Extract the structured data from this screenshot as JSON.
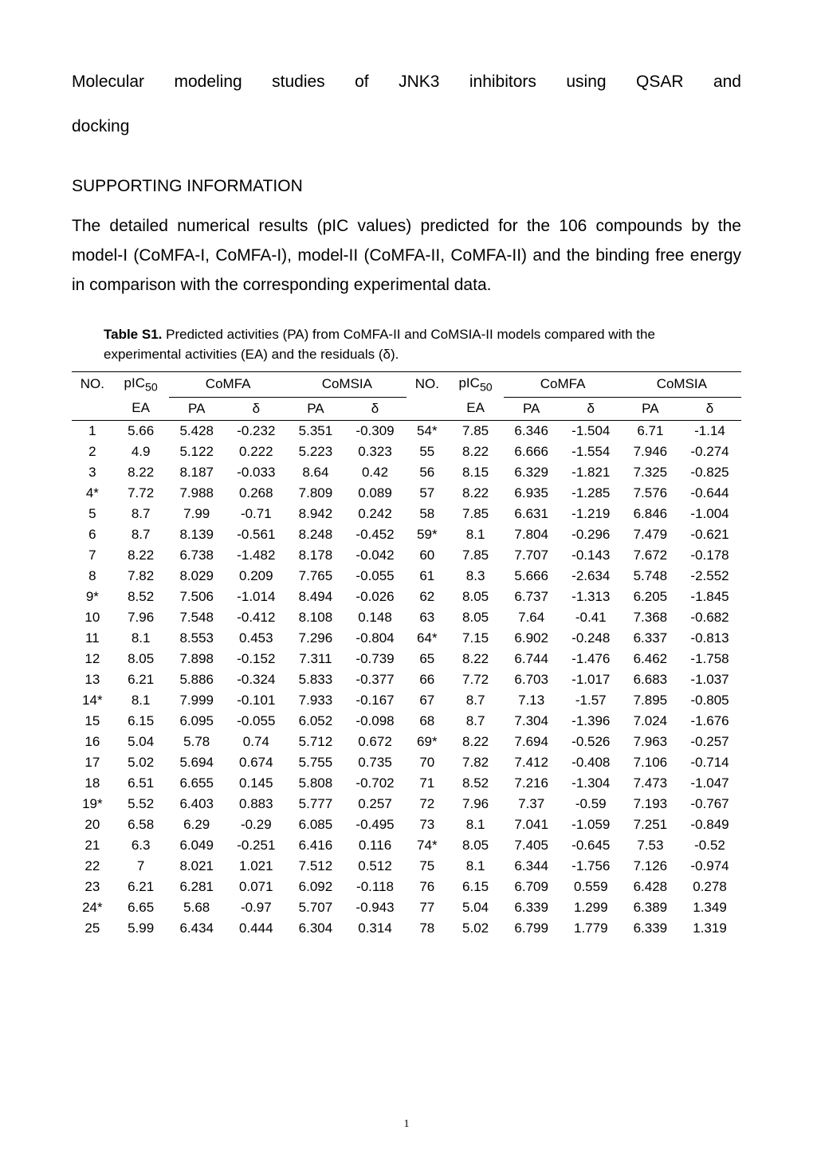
{
  "title_line1": "Molecular modeling studies of JNK3 inhibitors using QSAR and",
  "title_line2": "docking",
  "section_heading": "SUPPORTING INFORMATION",
  "body_paragraph": "The detailed numerical results (pIC values) predicted for the 106 compounds by the model-I (CoMFA-I, CoMFA-I), model-II (CoMFA-II, CoMFA-II) and the binding free energy in comparison with the corresponding experimental data.",
  "table_caption_label": "Table S1.",
  "table_caption_text": " Predicted activities (PA) from CoMFA-II and CoMSIA-II models compared with the experimental activities (EA) and the residuals (δ).",
  "page_number": "1",
  "table": {
    "top_header": {
      "no": "NO.",
      "pic50": "pIC",
      "pic50_sub": "50",
      "comfa": "CoMFA",
      "comsia": "CoMSIA"
    },
    "sub_header": {
      "ea": "EA",
      "pa": "PA",
      "delta": "δ"
    },
    "rows": [
      {
        "no": "1",
        "ea1": "5.66",
        "pa1": "5.428",
        "d1": "-0.232",
        "pa2": "5.351",
        "d2": "-0.309",
        "no2": "54*",
        "ea2": "7.85",
        "pa3": "6.346",
        "d3": "-1.504",
        "pa4": "6.71",
        "d4": "-1.14"
      },
      {
        "no": "2",
        "ea1": "4.9",
        "pa1": "5.122",
        "d1": "0.222",
        "pa2": "5.223",
        "d2": "0.323",
        "no2": "55",
        "ea2": "8.22",
        "pa3": "6.666",
        "d3": "-1.554",
        "pa4": "7.946",
        "d4": "-0.274"
      },
      {
        "no": "3",
        "ea1": "8.22",
        "pa1": "8.187",
        "d1": "-0.033",
        "pa2": "8.64",
        "d2": "0.42",
        "no2": "56",
        "ea2": "8.15",
        "pa3": "6.329",
        "d3": "-1.821",
        "pa4": "7.325",
        "d4": "-0.825"
      },
      {
        "no": "4*",
        "ea1": "7.72",
        "pa1": "7.988",
        "d1": "0.268",
        "pa2": "7.809",
        "d2": "0.089",
        "no2": "57",
        "ea2": "8.22",
        "pa3": "6.935",
        "d3": "-1.285",
        "pa4": "7.576",
        "d4": "-0.644"
      },
      {
        "no": "5",
        "ea1": "8.7",
        "pa1": "7.99",
        "d1": "-0.71",
        "pa2": "8.942",
        "d2": "0.242",
        "no2": "58",
        "ea2": "7.85",
        "pa3": "6.631",
        "d3": "-1.219",
        "pa4": "6.846",
        "d4": "-1.004"
      },
      {
        "no": "6",
        "ea1": "8.7",
        "pa1": "8.139",
        "d1": "-0.561",
        "pa2": "8.248",
        "d2": "-0.452",
        "no2": "59*",
        "ea2": "8.1",
        "pa3": "7.804",
        "d3": "-0.296",
        "pa4": "7.479",
        "d4": "-0.621"
      },
      {
        "no": "7",
        "ea1": "8.22",
        "pa1": "6.738",
        "d1": "-1.482",
        "pa2": "8.178",
        "d2": "-0.042",
        "no2": "60",
        "ea2": "7.85",
        "pa3": "7.707",
        "d3": "-0.143",
        "pa4": "7.672",
        "d4": "-0.178"
      },
      {
        "no": "8",
        "ea1": "7.82",
        "pa1": "8.029",
        "d1": "0.209",
        "pa2": "7.765",
        "d2": "-0.055",
        "no2": "61",
        "ea2": "8.3",
        "pa3": "5.666",
        "d3": "-2.634",
        "pa4": "5.748",
        "d4": "-2.552"
      },
      {
        "no": "9*",
        "ea1": "8.52",
        "pa1": "7.506",
        "d1": "-1.014",
        "pa2": "8.494",
        "d2": "-0.026",
        "no2": "62",
        "ea2": "8.05",
        "pa3": "6.737",
        "d3": "-1.313",
        "pa4": "6.205",
        "d4": "-1.845"
      },
      {
        "no": "10",
        "ea1": "7.96",
        "pa1": "7.548",
        "d1": "-0.412",
        "pa2": "8.108",
        "d2": "0.148",
        "no2": "63",
        "ea2": "8.05",
        "pa3": "7.64",
        "d3": "-0.41",
        "pa4": "7.368",
        "d4": "-0.682"
      },
      {
        "no": "11",
        "ea1": "8.1",
        "pa1": "8.553",
        "d1": "0.453",
        "pa2": "7.296",
        "d2": "-0.804",
        "no2": "64*",
        "ea2": "7.15",
        "pa3": "6.902",
        "d3": "-0.248",
        "pa4": "6.337",
        "d4": "-0.813"
      },
      {
        "no": "12",
        "ea1": "8.05",
        "pa1": "7.898",
        "d1": "-0.152",
        "pa2": "7.311",
        "d2": "-0.739",
        "no2": "65",
        "ea2": "8.22",
        "pa3": "6.744",
        "d3": "-1.476",
        "pa4": "6.462",
        "d4": "-1.758"
      },
      {
        "no": "13",
        "ea1": "6.21",
        "pa1": "5.886",
        "d1": "-0.324",
        "pa2": "5.833",
        "d2": "-0.377",
        "no2": "66",
        "ea2": "7.72",
        "pa3": "6.703",
        "d3": "-1.017",
        "pa4": "6.683",
        "d4": "-1.037"
      },
      {
        "no": "14*",
        "ea1": "8.1",
        "pa1": "7.999",
        "d1": "-0.101",
        "pa2": "7.933",
        "d2": "-0.167",
        "no2": "67",
        "ea2": "8.7",
        "pa3": "7.13",
        "d3": "-1.57",
        "pa4": "7.895",
        "d4": "-0.805"
      },
      {
        "no": "15",
        "ea1": "6.15",
        "pa1": "6.095",
        "d1": "-0.055",
        "pa2": "6.052",
        "d2": "-0.098",
        "no2": "68",
        "ea2": "8.7",
        "pa3": "7.304",
        "d3": "-1.396",
        "pa4": "7.024",
        "d4": "-1.676"
      },
      {
        "no": "16",
        "ea1": "5.04",
        "pa1": "5.78",
        "d1": "0.74",
        "pa2": "5.712",
        "d2": "0.672",
        "no2": "69*",
        "ea2": "8.22",
        "pa3": "7.694",
        "d3": "-0.526",
        "pa4": "7.963",
        "d4": "-0.257"
      },
      {
        "no": "17",
        "ea1": "5.02",
        "pa1": "5.694",
        "d1": "0.674",
        "pa2": "5.755",
        "d2": "0.735",
        "no2": "70",
        "ea2": "7.82",
        "pa3": "7.412",
        "d3": "-0.408",
        "pa4": "7.106",
        "d4": "-0.714"
      },
      {
        "no": "18",
        "ea1": "6.51",
        "pa1": "6.655",
        "d1": "0.145",
        "pa2": "5.808",
        "d2": "-0.702",
        "no2": "71",
        "ea2": "8.52",
        "pa3": "7.216",
        "d3": "-1.304",
        "pa4": "7.473",
        "d4": "-1.047"
      },
      {
        "no": "19*",
        "ea1": "5.52",
        "pa1": "6.403",
        "d1": "0.883",
        "pa2": "5.777",
        "d2": "0.257",
        "no2": "72",
        "ea2": "7.96",
        "pa3": "7.37",
        "d3": "-0.59",
        "pa4": "7.193",
        "d4": "-0.767"
      },
      {
        "no": "20",
        "ea1": "6.58",
        "pa1": "6.29",
        "d1": "-0.29",
        "pa2": "6.085",
        "d2": "-0.495",
        "no2": "73",
        "ea2": "8.1",
        "pa3": "7.041",
        "d3": "-1.059",
        "pa4": "7.251",
        "d4": "-0.849"
      },
      {
        "no": "21",
        "ea1": "6.3",
        "pa1": "6.049",
        "d1": "-0.251",
        "pa2": "6.416",
        "d2": "0.116",
        "no2": "74*",
        "ea2": "8.05",
        "pa3": "7.405",
        "d3": "-0.645",
        "pa4": "7.53",
        "d4": "-0.52"
      },
      {
        "no": "22",
        "ea1": "7",
        "pa1": "8.021",
        "d1": "1.021",
        "pa2": "7.512",
        "d2": "0.512",
        "no2": "75",
        "ea2": "8.1",
        "pa3": "6.344",
        "d3": "-1.756",
        "pa4": "7.126",
        "d4": "-0.974"
      },
      {
        "no": "23",
        "ea1": "6.21",
        "pa1": "6.281",
        "d1": "0.071",
        "pa2": "6.092",
        "d2": "-0.118",
        "no2": "76",
        "ea2": "6.15",
        "pa3": "6.709",
        "d3": "0.559",
        "pa4": "6.428",
        "d4": "0.278"
      },
      {
        "no": "24*",
        "ea1": "6.65",
        "pa1": "5.68",
        "d1": "-0.97",
        "pa2": "5.707",
        "d2": "-0.943",
        "no2": "77",
        "ea2": "5.04",
        "pa3": "6.339",
        "d3": "1.299",
        "pa4": "6.389",
        "d4": "1.349"
      },
      {
        "no": "25",
        "ea1": "5.99",
        "pa1": "6.434",
        "d1": "0.444",
        "pa2": "6.304",
        "d2": "0.314",
        "no2": "78",
        "ea2": "5.02",
        "pa3": "6.799",
        "d3": "1.779",
        "pa4": "6.339",
        "d4": "1.319"
      }
    ],
    "column_widths_pct": [
      5.5,
      6,
      7,
      8,
      7,
      8,
      6,
      6,
      7,
      8,
      7,
      8
    ],
    "border_color": "#000000",
    "font_size_pt": 12
  }
}
